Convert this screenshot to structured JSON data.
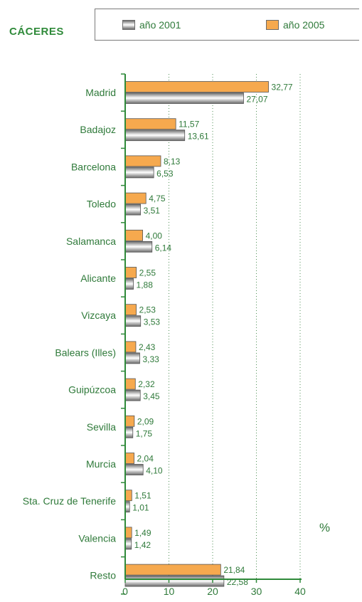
{
  "header": {
    "region": "CÁCERES"
  },
  "legend": {
    "items": [
      {
        "label": "año 2001"
      },
      {
        "label": "año 2005"
      }
    ]
  },
  "unit_label": "%",
  "colors": {
    "y2005": "#f6a94e",
    "y2001": "#c8c8c8",
    "text": "#2f7a3a",
    "axis": "#2f8a3a"
  },
  "chart_data": {
    "type": "bar",
    "orientation": "horizontal",
    "categories": [
      "Madrid",
      "Badajoz",
      "Barcelona",
      "Toledo",
      "Salamanca",
      "Alicante",
      "Vizcaya",
      "Balears (Illes)",
      "Guipúzcoa",
      "Sevilla",
      "Murcia",
      "Sta. Cruz de Tenerife",
      "Valencia",
      "Resto"
    ],
    "series": [
      {
        "name": "año 2005",
        "values": [
          32.77,
          11.57,
          8.13,
          4.75,
          4.0,
          2.55,
          2.53,
          2.43,
          2.32,
          2.09,
          2.04,
          1.51,
          1.49,
          21.84
        ],
        "labels": [
          "32,77",
          "11,57",
          "8,13",
          "4,75",
          "4,00",
          "2,55",
          "2,53",
          "2,43",
          "2,32",
          "2,09",
          "2,04",
          "1,51",
          "1,49",
          "21,84"
        ]
      },
      {
        "name": "año 2001",
        "values": [
          27.07,
          13.61,
          6.53,
          3.51,
          6.14,
          1.88,
          3.53,
          3.33,
          3.45,
          1.75,
          4.1,
          1.01,
          1.42,
          22.58
        ],
        "labels": [
          "27,07",
          "13,61",
          "6,53",
          "3,51",
          "6,14",
          "1,88",
          "3,53",
          "3,33",
          "3,45",
          "1,75",
          "4,10",
          "1,01",
          "1,42",
          "22,58"
        ]
      }
    ],
    "xlim": [
      0,
      40
    ],
    "xticks": [
      "0",
      "10",
      "20",
      "30",
      "40"
    ],
    "grid": "vertical dotted",
    "xlabel": "%"
  }
}
